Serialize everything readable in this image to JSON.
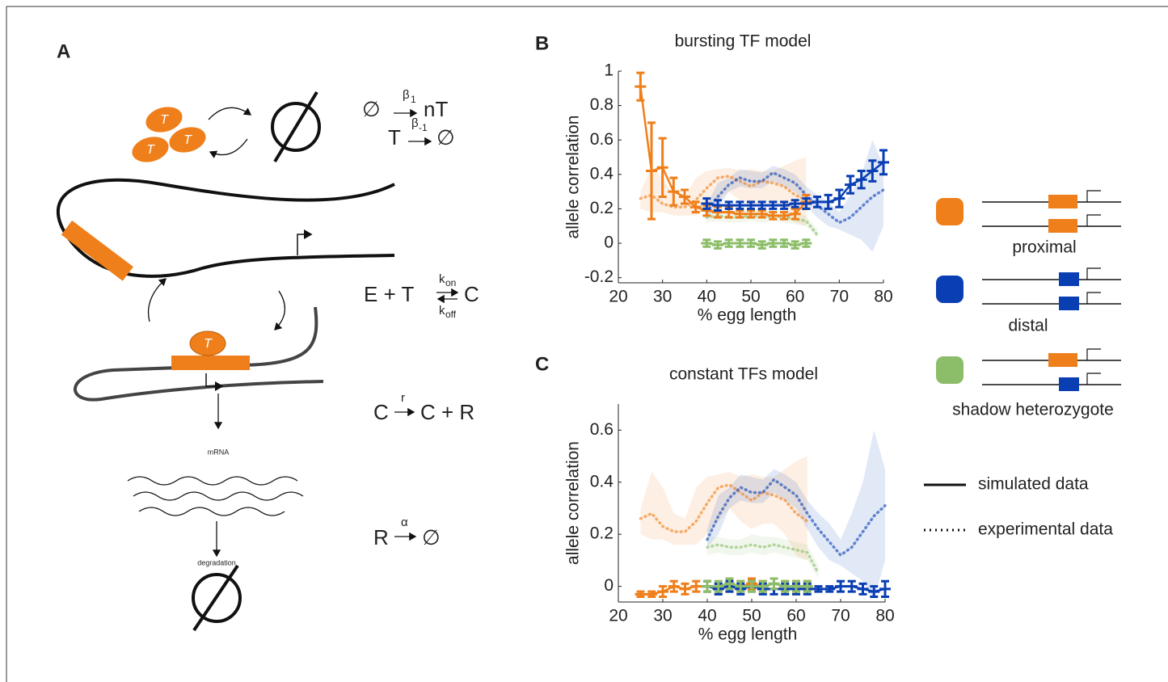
{
  "panels": {
    "a": "A",
    "b": "B",
    "c": "C"
  },
  "diagram": {
    "tf_labels": [
      "T",
      "T",
      "T",
      "T",
      "T"
    ],
    "mrna": "mRNA",
    "degradation": "degradation",
    "reactions": [
      {
        "left": "∅",
        "rate": "β",
        "rate_sub": "1",
        "right": "nT"
      },
      {
        "left": "T",
        "rate": "β",
        "rate_sub": "-1",
        "right": "∅"
      },
      {
        "left": "E + T",
        "forward_rate": "k",
        "forward_sub": "on",
        "reverse_rate": "k",
        "reverse_sub": "off",
        "right": "C"
      },
      {
        "left": "C",
        "rate": "r",
        "right": "C + R"
      },
      {
        "left": "R",
        "rate": "α",
        "right": "∅"
      }
    ]
  },
  "legend": {
    "items": [
      {
        "label": "proximal",
        "color": "#ef7f1a"
      },
      {
        "label": "distal",
        "color": "#0a3fb4"
      },
      {
        "label": "shadow heterozygote",
        "color": "#8cbd68"
      }
    ],
    "styles": [
      {
        "label": "simulated data",
        "style": "solid"
      },
      {
        "label": "experimental data",
        "style": "dotted"
      }
    ]
  },
  "chart_data": [
    {
      "type": "line",
      "title": "bursting TF model",
      "x_label": "% egg length",
      "y_label": "allele correlation",
      "xlim": [
        20,
        80
      ],
      "xticks": [
        20,
        30,
        40,
        50,
        60,
        70,
        80
      ],
      "ylim": [
        -0.23,
        1
      ],
      "yticks": [
        -0.2,
        0,
        0.2,
        0.4,
        0.6,
        0.8,
        1
      ],
      "series": [
        {
          "color": "#ef7f1a",
          "style": "dotted",
          "x": [
            25,
            27.5,
            30,
            32.5,
            35,
            37.5,
            40,
            42.5,
            45,
            47.5,
            50,
            52.5,
            55,
            57.5,
            60,
            62.5
          ],
          "values": [
            0.26,
            0.28,
            0.23,
            0.21,
            0.21,
            0.25,
            0.32,
            0.38,
            0.39,
            0.36,
            0.33,
            0.36,
            0.35,
            0.33,
            0.28,
            0.25
          ],
          "lower": [
            0.2,
            0.18,
            0.18,
            0.16,
            0.16,
            0.16,
            0.2,
            0.25,
            0.3,
            0.25,
            0.22,
            0.24,
            0.24,
            0.2,
            0.12,
            0.1
          ],
          "upper": [
            0.3,
            0.44,
            0.38,
            0.28,
            0.26,
            0.38,
            0.42,
            0.43,
            0.44,
            0.42,
            0.43,
            0.42,
            0.42,
            0.45,
            0.48,
            0.5
          ]
        },
        {
          "color": "#0a3fb4",
          "style": "dotted",
          "x": [
            40,
            42.5,
            45,
            47.5,
            50,
            52.5,
            55,
            57.5,
            60,
            62.5,
            65,
            67.5,
            70,
            72.5,
            75,
            77.5,
            80
          ],
          "values": [
            0.18,
            0.27,
            0.34,
            0.38,
            0.36,
            0.36,
            0.41,
            0.38,
            0.35,
            0.28,
            0.22,
            0.17,
            0.12,
            0.15,
            0.21,
            0.27,
            0.31
          ],
          "lower": [
            0.15,
            0.2,
            0.3,
            0.33,
            0.32,
            0.32,
            0.36,
            0.33,
            0.3,
            0.22,
            0.15,
            0.1,
            0.08,
            0.05,
            0.02,
            -0.05,
            0.1
          ],
          "upper": [
            0.22,
            0.35,
            0.38,
            0.43,
            0.42,
            0.41,
            0.45,
            0.43,
            0.4,
            0.33,
            0.28,
            0.24,
            0.18,
            0.28,
            0.4,
            0.6,
            0.45
          ]
        },
        {
          "color": "#8cbd68",
          "style": "dotted",
          "x": [
            40,
            42.5,
            45,
            47.5,
            50,
            52.5,
            55,
            57.5,
            60,
            62.5,
            65
          ],
          "values": [
            0.15,
            0.16,
            0.15,
            0.15,
            0.16,
            0.15,
            0.16,
            0.15,
            0.14,
            0.13,
            0.05
          ],
          "lower": [
            0.12,
            0.13,
            0.12,
            0.12,
            0.13,
            0.12,
            0.13,
            0.12,
            0.11,
            0.1,
            0.03
          ],
          "upper": [
            0.19,
            0.19,
            0.18,
            0.18,
            0.2,
            0.19,
            0.19,
            0.18,
            0.17,
            0.16,
            0.08
          ]
        },
        {
          "color": "#ef7f1a",
          "style": "solid",
          "x": [
            25,
            27.5,
            30,
            32.5,
            35,
            37.5,
            40,
            42.5,
            45,
            47.5,
            50,
            52.5,
            55,
            57.5,
            60,
            62.5
          ],
          "values": [
            0.91,
            0.42,
            0.44,
            0.3,
            0.27,
            0.21,
            0.19,
            0.18,
            0.18,
            0.17,
            0.17,
            0.17,
            0.16,
            0.16,
            0.17,
            0.24
          ],
          "errors": [
            0.08,
            0.28,
            0.17,
            0.08,
            0.04,
            0.03,
            0.03,
            0.03,
            0.03,
            0.02,
            0.02,
            0.02,
            0.02,
            0.02,
            0.03,
            0.04
          ]
        },
        {
          "color": "#0a3fb4",
          "style": "solid",
          "x": [
            40,
            42.5,
            45,
            47.5,
            50,
            52.5,
            55,
            57.5,
            60,
            62.5,
            65,
            67.5,
            70,
            72.5,
            75,
            77.5,
            80
          ],
          "values": [
            0.23,
            0.22,
            0.22,
            0.22,
            0.22,
            0.22,
            0.22,
            0.22,
            0.23,
            0.23,
            0.24,
            0.24,
            0.26,
            0.34,
            0.37,
            0.42,
            0.47
          ],
          "errors": [
            0.03,
            0.03,
            0.02,
            0.02,
            0.02,
            0.02,
            0.02,
            0.02,
            0.02,
            0.03,
            0.03,
            0.04,
            0.05,
            0.05,
            0.05,
            0.06,
            0.07
          ]
        },
        {
          "color": "#8cbd68",
          "style": "solid",
          "x": [
            40,
            42.5,
            45,
            47.5,
            50,
            52.5,
            55,
            57.5,
            60,
            62.5
          ],
          "values": [
            0,
            -0.01,
            0,
            0,
            0,
            -0.01,
            0,
            0,
            -0.01,
            0
          ],
          "errors": [
            0.02,
            0.02,
            0.02,
            0.02,
            0.02,
            0.02,
            0.02,
            0.02,
            0.02,
            0.02
          ]
        }
      ]
    },
    {
      "type": "line",
      "title": "constant TFs model",
      "x_label": "% egg length",
      "y_label": "allele correlation",
      "xlim": [
        20,
        80
      ],
      "xticks": [
        20,
        30,
        40,
        50,
        60,
        70,
        80
      ],
      "ylim": [
        -0.06,
        0.7
      ],
      "yticks": [
        0,
        0.2,
        0.4,
        0.6
      ],
      "series": [
        {
          "color": "#ef7f1a",
          "style": "dotted",
          "x": [
            25,
            27.5,
            30,
            32.5,
            35,
            37.5,
            40,
            42.5,
            45,
            47.5,
            50,
            52.5,
            55,
            57.5,
            60,
            62.5
          ],
          "values": [
            0.26,
            0.28,
            0.23,
            0.21,
            0.21,
            0.25,
            0.32,
            0.38,
            0.39,
            0.36,
            0.33,
            0.36,
            0.35,
            0.33,
            0.28,
            0.25
          ],
          "lower": [
            0.2,
            0.18,
            0.18,
            0.16,
            0.16,
            0.16,
            0.2,
            0.25,
            0.3,
            0.25,
            0.22,
            0.24,
            0.24,
            0.2,
            0.12,
            0.1
          ],
          "upper": [
            0.3,
            0.44,
            0.38,
            0.28,
            0.26,
            0.38,
            0.42,
            0.43,
            0.44,
            0.42,
            0.43,
            0.42,
            0.42,
            0.45,
            0.48,
            0.5
          ]
        },
        {
          "color": "#0a3fb4",
          "style": "dotted",
          "x": [
            40,
            42.5,
            45,
            47.5,
            50,
            52.5,
            55,
            57.5,
            60,
            62.5,
            65,
            67.5,
            70,
            72.5,
            75,
            77.5,
            80
          ],
          "values": [
            0.18,
            0.27,
            0.34,
            0.38,
            0.36,
            0.36,
            0.41,
            0.38,
            0.35,
            0.28,
            0.22,
            0.17,
            0.12,
            0.15,
            0.21,
            0.27,
            0.31
          ],
          "lower": [
            0.15,
            0.2,
            0.3,
            0.33,
            0.32,
            0.32,
            0.36,
            0.33,
            0.3,
            0.22,
            0.15,
            0.1,
            0.08,
            0.05,
            0.02,
            -0.05,
            0.1
          ],
          "upper": [
            0.22,
            0.35,
            0.38,
            0.43,
            0.42,
            0.41,
            0.45,
            0.43,
            0.4,
            0.33,
            0.28,
            0.24,
            0.18,
            0.28,
            0.4,
            0.6,
            0.45
          ]
        },
        {
          "color": "#8cbd68",
          "style": "dotted",
          "x": [
            40,
            42.5,
            45,
            47.5,
            50,
            52.5,
            55,
            57.5,
            60,
            62.5,
            65
          ],
          "values": [
            0.15,
            0.16,
            0.15,
            0.15,
            0.16,
            0.15,
            0.16,
            0.15,
            0.14,
            0.13,
            0.05
          ],
          "lower": [
            0.12,
            0.13,
            0.12,
            0.12,
            0.13,
            0.12,
            0.13,
            0.12,
            0.11,
            0.1,
            0.03
          ],
          "upper": [
            0.19,
            0.19,
            0.18,
            0.18,
            0.2,
            0.19,
            0.19,
            0.18,
            0.17,
            0.16,
            0.08
          ]
        },
        {
          "color": "#ef7f1a",
          "style": "solid",
          "x": [
            25,
            27.5,
            30,
            32.5,
            35,
            37.5,
            40,
            42.5,
            45,
            47.5,
            50,
            52.5,
            55,
            57.5,
            60,
            62.5
          ],
          "values": [
            -0.03,
            -0.03,
            -0.02,
            0,
            -0.01,
            0,
            0,
            -0.01,
            0,
            0,
            0.01,
            0,
            0.01,
            0,
            0,
            0
          ],
          "errors": [
            0.01,
            0.01,
            0.02,
            0.02,
            0.02,
            0.02,
            0.02,
            0.02,
            0.02,
            0.02,
            0.02,
            0.02,
            0.02,
            0.02,
            0.02,
            0.02
          ]
        },
        {
          "color": "#0a3fb4",
          "style": "solid",
          "x": [
            40,
            42.5,
            45,
            47.5,
            50,
            52.5,
            55,
            57.5,
            60,
            62.5,
            65,
            67.5,
            70,
            72.5,
            75,
            77.5,
            80
          ],
          "values": [
            0,
            -0.01,
            0,
            -0.01,
            0,
            -0.01,
            -0.01,
            -0.01,
            -0.01,
            -0.01,
            -0.01,
            -0.01,
            0,
            0,
            -0.01,
            -0.02,
            -0.01
          ],
          "errors": [
            0.02,
            0.02,
            0.02,
            0.02,
            0.02,
            0.02,
            0.02,
            0.02,
            0.02,
            0.02,
            0.01,
            0.01,
            0.02,
            0.02,
            0.02,
            0.02,
            0.03
          ]
        },
        {
          "color": "#8cbd68",
          "style": "solid",
          "x": [
            40,
            42.5,
            45,
            47.5,
            50,
            52.5,
            55,
            57.5,
            60,
            62.5
          ],
          "values": [
            0,
            0,
            0.01,
            0,
            0,
            0,
            0.01,
            0,
            0,
            0
          ],
          "errors": [
            0.02,
            0.02,
            0.02,
            0.02,
            0.02,
            0.02,
            0.02,
            0.02,
            0.02,
            0.02
          ]
        }
      ]
    }
  ]
}
